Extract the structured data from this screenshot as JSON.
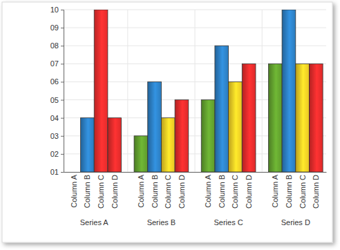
{
  "chart_data": {
    "type": "bar",
    "categories": [
      "Series A",
      "Series B",
      "Series C",
      "Series D"
    ],
    "series": [
      {
        "name": "Column A",
        "color": "#5e9a2c",
        "values": [
          1,
          3,
          5,
          7
        ]
      },
      {
        "name": "Column B",
        "color": "#2b7bbd",
        "values": [
          4,
          6,
          8,
          10
        ]
      },
      {
        "name": "Column C",
        "colors": [
          "#e52b2b",
          "#e9c524",
          "#e9c524",
          "#e9c524"
        ],
        "values": [
          10,
          4,
          6,
          7
        ]
      },
      {
        "name": "Column D",
        "color": "#dc2a2a",
        "values": [
          4,
          5,
          7,
          7
        ]
      }
    ],
    "ylim": [
      1,
      10
    ],
    "yticks": [
      {
        "value": 1,
        "label": "01"
      },
      {
        "value": 2,
        "label": "02"
      },
      {
        "value": 3,
        "label": "03"
      },
      {
        "value": 4,
        "label": "04"
      },
      {
        "value": 5,
        "label": "05"
      },
      {
        "value": 6,
        "label": "06"
      },
      {
        "value": 7,
        "label": "07"
      },
      {
        "value": 8,
        "label": "08"
      },
      {
        "value": 9,
        "label": "09"
      },
      10
    ],
    "grid": true
  }
}
